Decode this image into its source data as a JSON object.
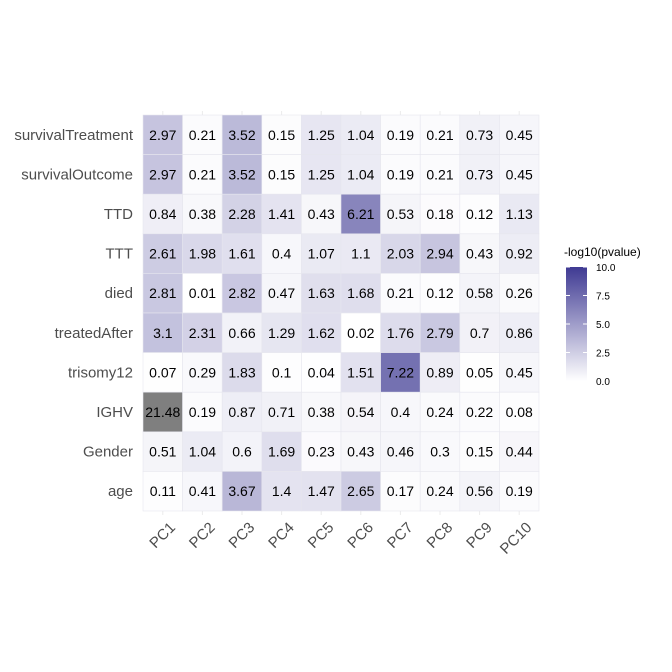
{
  "chart_data": {
    "type": "heatmap",
    "x_categories": [
      "PC1",
      "PC2",
      "PC3",
      "PC4",
      "PC5",
      "PC6",
      "PC7",
      "PC8",
      "PC9",
      "PC10"
    ],
    "y_categories": [
      "survivalTreatment",
      "survivalOutcome",
      "TTD",
      "TTT",
      "died",
      "treatedAfter",
      "trisomy12",
      "IGHV",
      "Gender",
      "age"
    ],
    "values": [
      [
        2.97,
        0.21,
        3.52,
        0.15,
        1.25,
        1.04,
        0.19,
        0.21,
        0.73,
        0.45
      ],
      [
        2.97,
        0.21,
        3.52,
        0.15,
        1.25,
        1.04,
        0.19,
        0.21,
        0.73,
        0.45
      ],
      [
        0.84,
        0.38,
        2.28,
        1.41,
        0.43,
        6.21,
        0.53,
        0.18,
        0.12,
        1.13
      ],
      [
        2.61,
        1.98,
        1.61,
        0.4,
        1.07,
        1.1,
        2.03,
        2.94,
        0.43,
        0.92
      ],
      [
        2.81,
        0.01,
        2.82,
        0.47,
        1.63,
        1.68,
        0.21,
        0.12,
        0.58,
        0.26
      ],
      [
        3.1,
        2.31,
        0.66,
        1.29,
        1.62,
        0.02,
        1.76,
        2.79,
        0.7,
        0.86
      ],
      [
        0.07,
        0.29,
        1.83,
        0.1,
        0.04,
        1.51,
        7.22,
        0.89,
        0.05,
        0.45
      ],
      [
        21.48,
        0.19,
        0.87,
        0.71,
        0.38,
        0.54,
        0.4,
        0.24,
        0.22,
        0.08
      ],
      [
        0.51,
        1.04,
        0.6,
        1.69,
        0.23,
        0.43,
        0.46,
        0.3,
        0.15,
        0.44
      ],
      [
        0.11,
        0.41,
        3.67,
        1.4,
        1.47,
        2.65,
        0.17,
        0.24,
        0.56,
        0.19
      ]
    ],
    "labels": [
      [
        "2.97",
        "0.21",
        "3.52",
        "0.15",
        "1.25",
        "1.04",
        "0.19",
        "0.21",
        "0.73",
        "0.45"
      ],
      [
        "2.97",
        "0.21",
        "3.52",
        "0.15",
        "1.25",
        "1.04",
        "0.19",
        "0.21",
        "0.73",
        "0.45"
      ],
      [
        "0.84",
        "0.38",
        "2.28",
        "1.41",
        "0.43",
        "6.21",
        "0.53",
        "0.18",
        "0.12",
        "1.13"
      ],
      [
        "2.61",
        "1.98",
        "1.61",
        "0.4",
        "1.07",
        "1.1",
        "2.03",
        "2.94",
        "0.43",
        "0.92"
      ],
      [
        "2.81",
        "0.01",
        "2.82",
        "0.47",
        "1.63",
        "1.68",
        "0.21",
        "0.12",
        "0.58",
        "0.26"
      ],
      [
        "3.1",
        "2.31",
        "0.66",
        "1.29",
        "1.62",
        "0.02",
        "1.76",
        "2.79",
        "0.7",
        "0.86"
      ],
      [
        "0.07",
        "0.29",
        "1.83",
        "0.1",
        "0.04",
        "1.51",
        "7.22",
        "0.89",
        "0.05",
        "0.45"
      ],
      [
        "21.48",
        "0.19",
        "0.87",
        "0.71",
        "0.38",
        "0.54",
        "0.4",
        "0.24",
        "0.22",
        "0.08"
      ],
      [
        "0.51",
        "1.04",
        "0.6",
        "1.69",
        "0.23",
        "0.43",
        "0.46",
        "0.3",
        "0.15",
        "0.44"
      ],
      [
        "0.11",
        "0.41",
        "3.67",
        "1.4",
        "1.47",
        "2.65",
        "0.17",
        "0.24",
        "0.56",
        "0.19"
      ]
    ],
    "color_scale": {
      "low_color": "#ffffff",
      "high_color": "#3f3a93",
      "limits": [
        0,
        10
      ],
      "na_color": "#7f7f7f"
    },
    "legend": {
      "title": "-log10(pvalue)",
      "ticks": [
        0,
        2.5,
        5,
        7.5,
        10
      ],
      "tick_labels": [
        "0.0",
        "2.5",
        "5.0",
        "7.5",
        "10.0"
      ],
      "placement": "right"
    },
    "grid": true,
    "title": "",
    "xlabel": "",
    "ylabel": ""
  }
}
